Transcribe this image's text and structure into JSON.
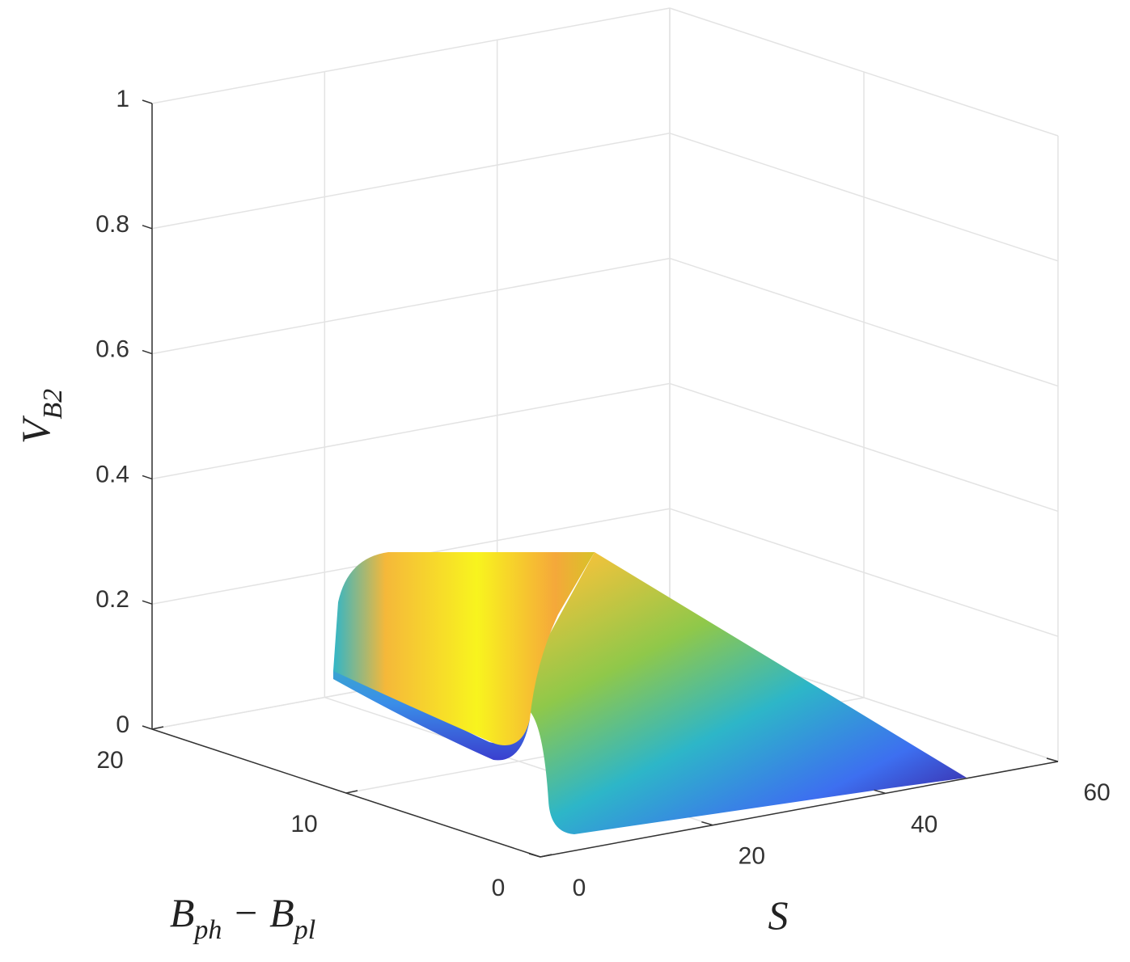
{
  "chart_data": {
    "type": "surface",
    "xlabel": "S",
    "ylabel": "B_ph − B_pl",
    "zlabel": "V_B2",
    "xlim": [
      0,
      60
    ],
    "xticks": [
      0,
      20,
      40,
      60
    ],
    "ylim": [
      0,
      20
    ],
    "yticks": [
      0,
      10,
      20
    ],
    "zlim": [
      0,
      1
    ],
    "zticks": [
      0,
      0.2,
      0.4,
      0.6,
      0.8,
      1
    ],
    "grid": true
  }
}
